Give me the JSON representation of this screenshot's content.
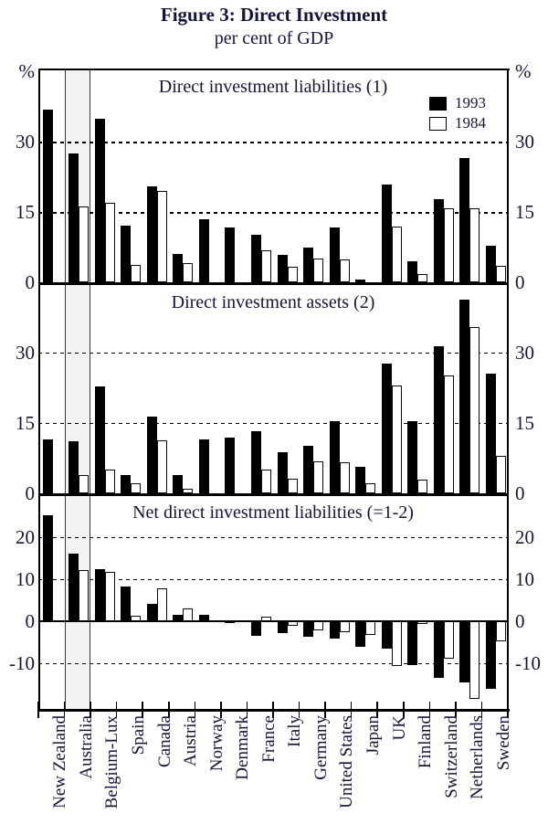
{
  "title": "Figure 3: Direct Investment",
  "subtitle": "per cent of GDP",
  "axis_unit": "%",
  "legend": [
    {
      "label": "1993"
    },
    {
      "label": "1984"
    }
  ],
  "categories": [
    "New Zealand",
    "Australia",
    "Belgium-Lux",
    "Spain",
    "Canada",
    "Austria",
    "Norway",
    "Denmark",
    "France",
    "Italy",
    "Germany",
    "United States",
    "Japan",
    "UK",
    "Finland",
    "Switzerland",
    "Netherlands",
    "Sweden"
  ],
  "highlighted_category": "Australia",
  "chart_data": [
    {
      "type": "bar",
      "title": "Direct investment liabilities (1)",
      "ylabel": "%",
      "ylim": [
        0,
        45
      ],
      "yticks": [
        0,
        15,
        30
      ],
      "grid": "dashed-horizontal",
      "legend_position": "top-right",
      "categories": [
        "New Zealand",
        "Australia",
        "Belgium-Lux",
        "Spain",
        "Canada",
        "Austria",
        "Norway",
        "Denmark",
        "France",
        "Italy",
        "Germany",
        "United States",
        "Japan",
        "UK",
        "Finland",
        "Switzerland",
        "Netherlands",
        "Sweden"
      ],
      "series": [
        {
          "name": "1993",
          "values": [
            37,
            27.5,
            35,
            12.2,
            20.5,
            6,
            13.4,
            11.8,
            10.2,
            5.9,
            7.5,
            11.8,
            0.5,
            21,
            4.5,
            17.8,
            26.5,
            7.8
          ]
        },
        {
          "name": "1984",
          "values": [
            null,
            16.2,
            17,
            3.7,
            19.5,
            4.2,
            null,
            null,
            6.8,
            3.3,
            5,
            4.8,
            null,
            12,
            1.8,
            15.8,
            15.8,
            3.6
          ]
        }
      ]
    },
    {
      "type": "bar",
      "title": "Direct investment assets (2)",
      "ylabel": "%",
      "ylim": [
        0,
        45
      ],
      "yticks": [
        0,
        15,
        30
      ],
      "grid": "dashed-horizontal",
      "categories": [
        "New Zealand",
        "Australia",
        "Belgium-Lux",
        "Spain",
        "Canada",
        "Austria",
        "Norway",
        "Denmark",
        "France",
        "Italy",
        "Germany",
        "United States",
        "Japan",
        "UK",
        "Finland",
        "Switzerland",
        "Netherlands",
        "Sweden"
      ],
      "series": [
        {
          "name": "1993",
          "values": [
            11.5,
            11.1,
            22.7,
            3.9,
            16.3,
            3.9,
            11.5,
            11.9,
            13.3,
            8.8,
            10.1,
            15.4,
            5.7,
            27.6,
            15.4,
            31.4,
            41.3,
            25.6
          ]
        },
        {
          "name": "1984",
          "values": [
            null,
            3.8,
            5.1,
            2.2,
            11.3,
            1,
            null,
            null,
            5.1,
            3.2,
            6.8,
            6.7,
            2.2,
            23,
            2.9,
            25.2,
            35.5,
            8
          ]
        }
      ]
    },
    {
      "type": "bar",
      "title": "Net direct investment liabilities (=1-2)",
      "ylabel": "%",
      "ylim": [
        -21,
        30
      ],
      "yticks": [
        -10,
        0,
        10,
        20
      ],
      "grid": "dashed-horizontal",
      "categories": [
        "New Zealand",
        "Australia",
        "Belgium-Lux",
        "Spain",
        "Canada",
        "Austria",
        "Norway",
        "Denmark",
        "France",
        "Italy",
        "Germany",
        "United States",
        "Japan",
        "UK",
        "Finland",
        "Switzerland",
        "Netherlands",
        "Sweden"
      ],
      "series": [
        {
          "name": "1993",
          "values": [
            25.3,
            16.1,
            12.3,
            8.2,
            4.2,
            1.6,
            1.6,
            -0.5,
            -3.4,
            -2.9,
            -3.8,
            -4.2,
            -6,
            -6.5,
            -10.4,
            -13.5,
            -14.6,
            -16
          ]
        },
        {
          "name": "1984",
          "values": [
            null,
            12.2,
            11.8,
            1.3,
            7.8,
            3,
            null,
            null,
            1.1,
            -1,
            -2.2,
            -2.7,
            -3.2,
            -10.6,
            -0.7,
            -9,
            -18.5,
            -4.8
          ]
        }
      ]
    }
  ]
}
